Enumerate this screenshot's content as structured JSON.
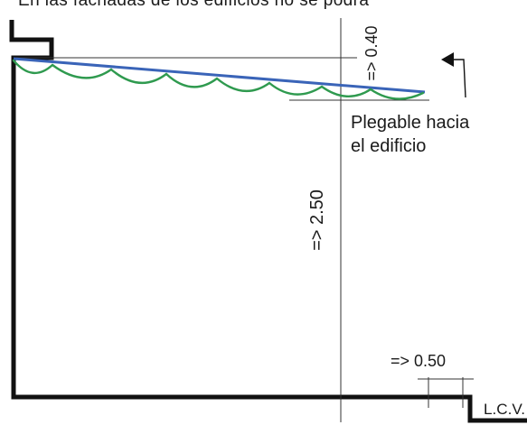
{
  "heading_fragment": "En las fachadas de los edificios no se podrá",
  "labels": {
    "max_projection": "=> 0.40",
    "min_height": "=> 2.50",
    "setback": "=> 0.50",
    "folding_line1": "Plegable hacia",
    "folding_line2": "el edificio",
    "lcv": "L.C.V."
  },
  "colors": {
    "outline": "#111111",
    "awning_frame": "#3a64b8",
    "awning_valance": "#2f9a4f",
    "dimension_line": "#333333"
  },
  "icons": {
    "fold_direction": "arrow-left-icon"
  }
}
